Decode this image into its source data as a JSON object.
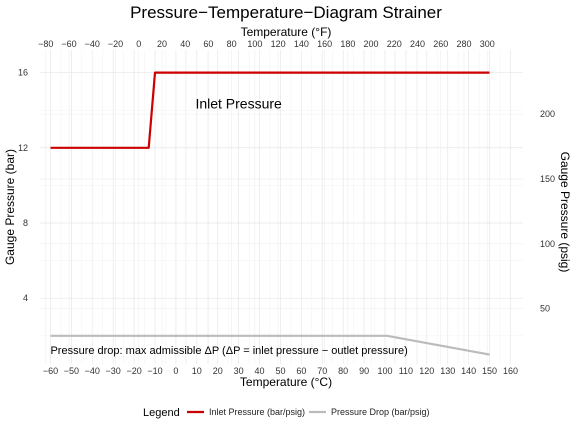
{
  "chart_data": {
    "type": "line",
    "title": "Pressure−Temperature−Diagram Strainer",
    "xlabel": "Temperature (°C)",
    "xlabel_top": "Temperature (°F)",
    "ylabel": "Gauge Pressure (bar)",
    "ylabel_right": "Gauge Pressure (psig)",
    "xlim": [
      -65,
      166
    ],
    "ylim": [
      0.5,
      17.2
    ],
    "x_ticks": [
      -60,
      -50,
      -40,
      -30,
      -20,
      -10,
      0,
      10,
      20,
      30,
      40,
      50,
      60,
      70,
      80,
      90,
      100,
      110,
      120,
      130,
      140,
      150,
      160
    ],
    "x_ticks_top_f": [
      -80,
      -60,
      -40,
      -20,
      0,
      20,
      40,
      60,
      80,
      100,
      120,
      140,
      160,
      180,
      200,
      220,
      240,
      260,
      280,
      300
    ],
    "y_ticks": [
      4,
      8,
      12,
      16
    ],
    "y_ticks_right_psig": [
      50,
      100,
      150,
      200
    ],
    "grid": true,
    "series": [
      {
        "name": "Inlet Pressure (bar/psig)",
        "color": "#cc0000",
        "x": [
          -60,
          -13,
          -10,
          150
        ],
        "y": [
          12,
          12,
          16,
          16
        ]
      },
      {
        "name": "Pressure Drop (bar/psig)",
        "color": "#bbbbbb",
        "x": [
          -60,
          101,
          150
        ],
        "y": [
          2,
          2,
          1
        ]
      }
    ],
    "annotations": [
      {
        "text": "Inlet Pressure",
        "x": 30,
        "y": 14.1,
        "size": "large"
      },
      {
        "text": "Pressure drop: max admissible ΔP (ΔP =  inlet pressure − outlet pressure)",
        "x": -60,
        "y": 1.02,
        "size": "small"
      }
    ],
    "legend": {
      "title": "Legend",
      "position": "bottom"
    }
  }
}
